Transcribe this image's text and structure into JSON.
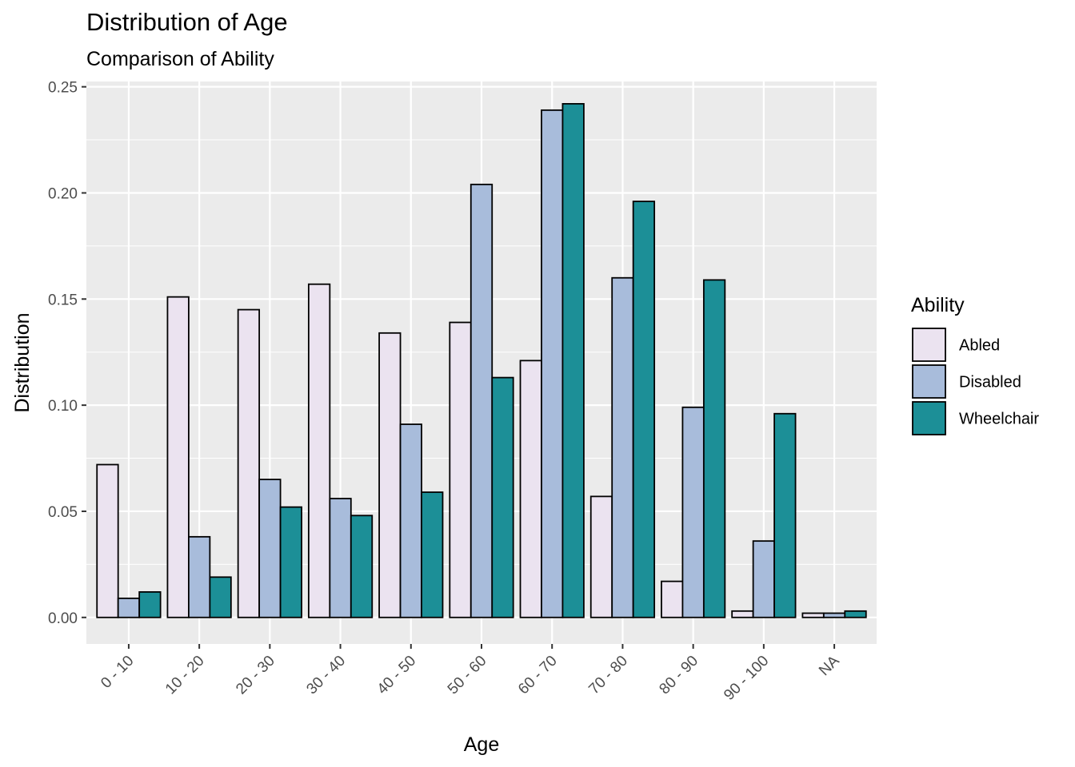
{
  "chart_data": {
    "type": "bar",
    "title": "Distribution of Age",
    "subtitle": "Comparison of Ability",
    "xlabel": "Age",
    "ylabel": "Distribution",
    "ylim": [
      -0.0125,
      0.2525
    ],
    "yticks": [
      0.0,
      0.05,
      0.1,
      0.15,
      0.2,
      0.25
    ],
    "ytick_labels": [
      "0.00",
      "0.05",
      "0.10",
      "0.15",
      "0.20",
      "0.25"
    ],
    "grid": true,
    "legend": {
      "title": "Ability",
      "placement": "right"
    },
    "categories": [
      "0 - 10",
      "10 - 20",
      "20 - 30",
      "30 - 40",
      "40 - 50",
      "50 - 60",
      "60 - 70",
      "70 - 80",
      "80 - 90",
      "90 - 100",
      "NA"
    ],
    "series": [
      {
        "name": "Abled",
        "color": "#ebe3f0",
        "values": [
          0.072,
          0.151,
          0.145,
          0.157,
          0.134,
          0.139,
          0.121,
          0.057,
          0.017,
          0.003,
          0.002
        ]
      },
      {
        "name": "Disabled",
        "color": "#a8bcdb",
        "values": [
          0.009,
          0.038,
          0.065,
          0.056,
          0.091,
          0.204,
          0.239,
          0.16,
          0.099,
          0.036,
          0.002
        ]
      },
      {
        "name": "Wheelchair",
        "color": "#1c8f97",
        "values": [
          0.012,
          0.019,
          0.052,
          0.048,
          0.059,
          0.113,
          0.242,
          0.196,
          0.159,
          0.096,
          0.003
        ]
      }
    ]
  }
}
